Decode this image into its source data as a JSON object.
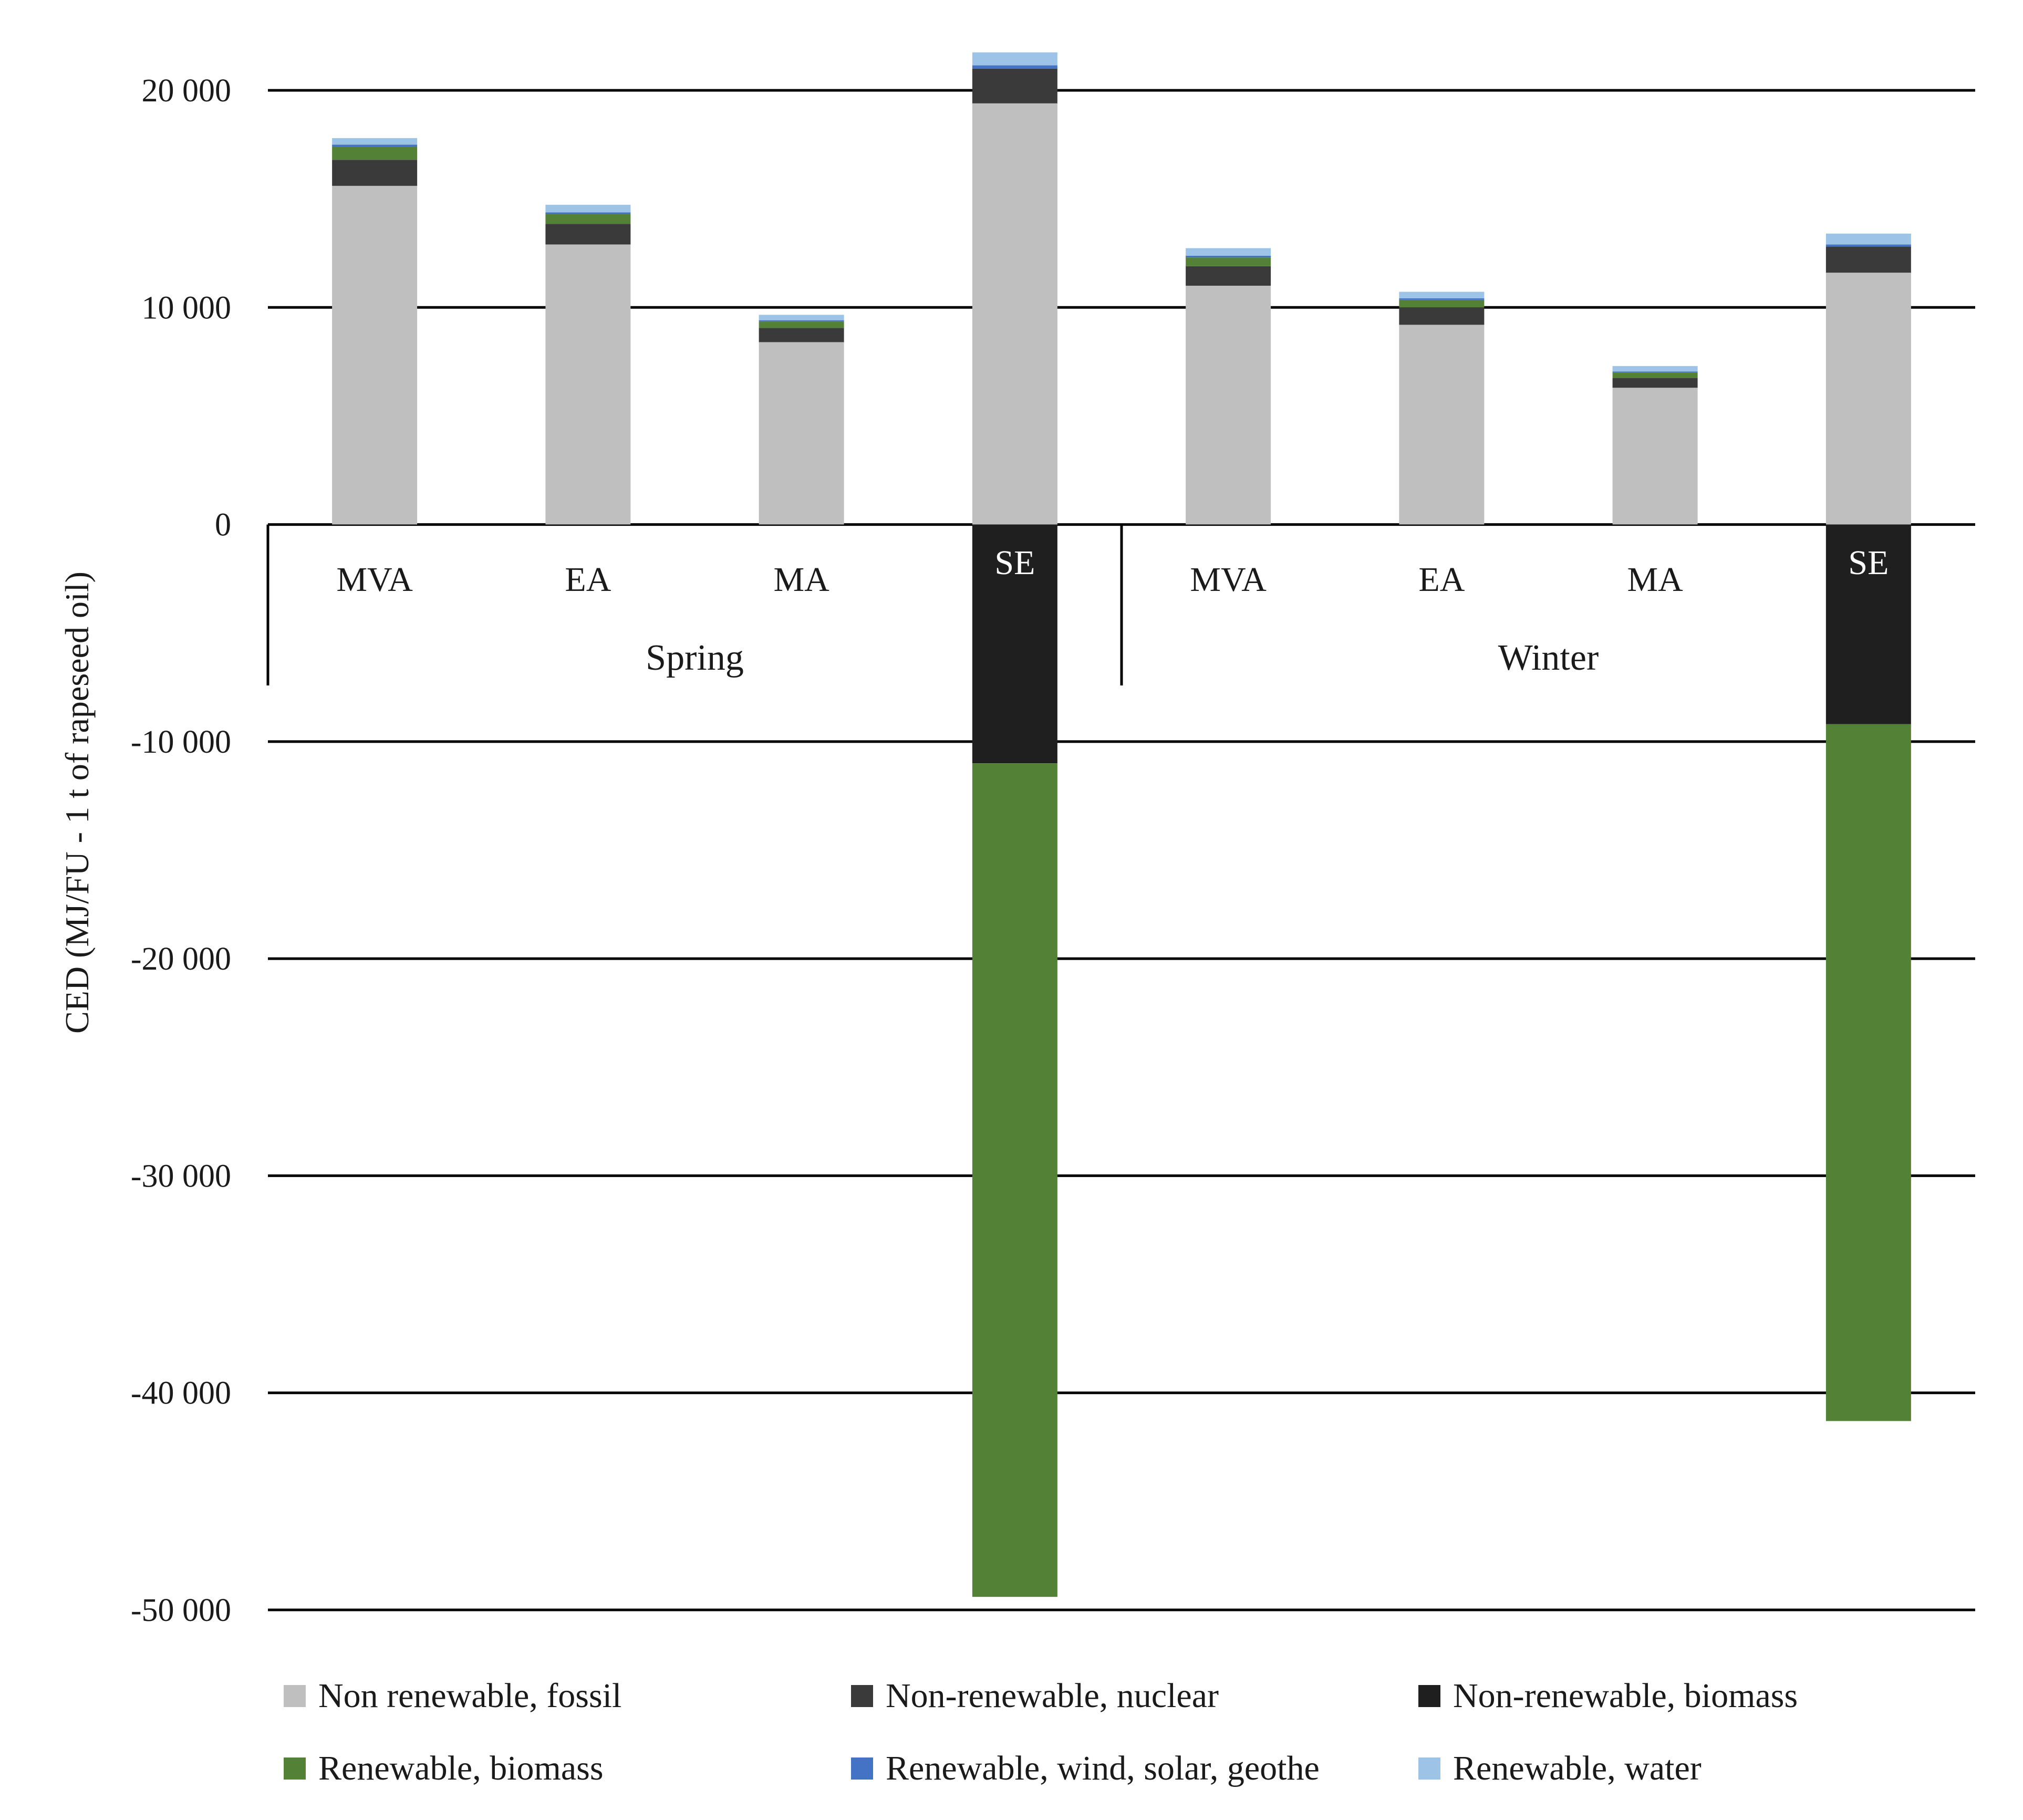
{
  "chart_data": {
    "type": "bar",
    "stacked": true,
    "ylabel": "CED (MJ/FU - 1 t of rapeseed oil)",
    "ylim": [
      -50000,
      20000
    ],
    "yticks": [
      20000,
      10000,
      0,
      -10000,
      -20000,
      -30000,
      -40000,
      -50000
    ],
    "ytick_labels": [
      "20 000",
      "10 000",
      "0",
      "-10 000",
      "-20 000",
      "-30 000",
      "-40 000",
      "-50 000"
    ],
    "groups": [
      {
        "name": "Spring",
        "categories": [
          "MVA",
          "EA",
          "MA",
          "SE"
        ]
      },
      {
        "name": "Winter",
        "categories": [
          "MVA",
          "EA",
          "MA",
          "SE"
        ]
      }
    ],
    "categories": [
      "MVA",
      "EA",
      "MA",
      "SE",
      "MVA",
      "EA",
      "MA",
      "SE"
    ],
    "series": [
      {
        "name": "Non renewable, fossil",
        "color": "#bfbfbf",
        "values": [
          15600,
          12900,
          8400,
          19400,
          11000,
          9200,
          6300,
          11600
        ]
      },
      {
        "name": "Non-renewable, nuclear",
        "color": "#3a3a3a",
        "values": [
          1200,
          950,
          650,
          1600,
          900,
          800,
          450,
          1200
        ]
      },
      {
        "name": "Non-renewable, biomass",
        "color": "#1f1f1f",
        "values": [
          0,
          0,
          0,
          -11000,
          0,
          0,
          0,
          -9200
        ]
      },
      {
        "name": "Renewable, biomass",
        "color": "#538135",
        "values": [
          600,
          450,
          300,
          -38400,
          400,
          350,
          250,
          -32100
        ]
      },
      {
        "name": "Renewable, wind, solar, geothe",
        "color": "#4472c4",
        "values": [
          100,
          80,
          60,
          150,
          80,
          70,
          50,
          100
        ]
      },
      {
        "name": "Renewable, water",
        "color": "#9dc3e6",
        "values": [
          300,
          350,
          250,
          600,
          350,
          300,
          250,
          500
        ]
      }
    ],
    "legend_position": "bottom",
    "grid": true
  }
}
